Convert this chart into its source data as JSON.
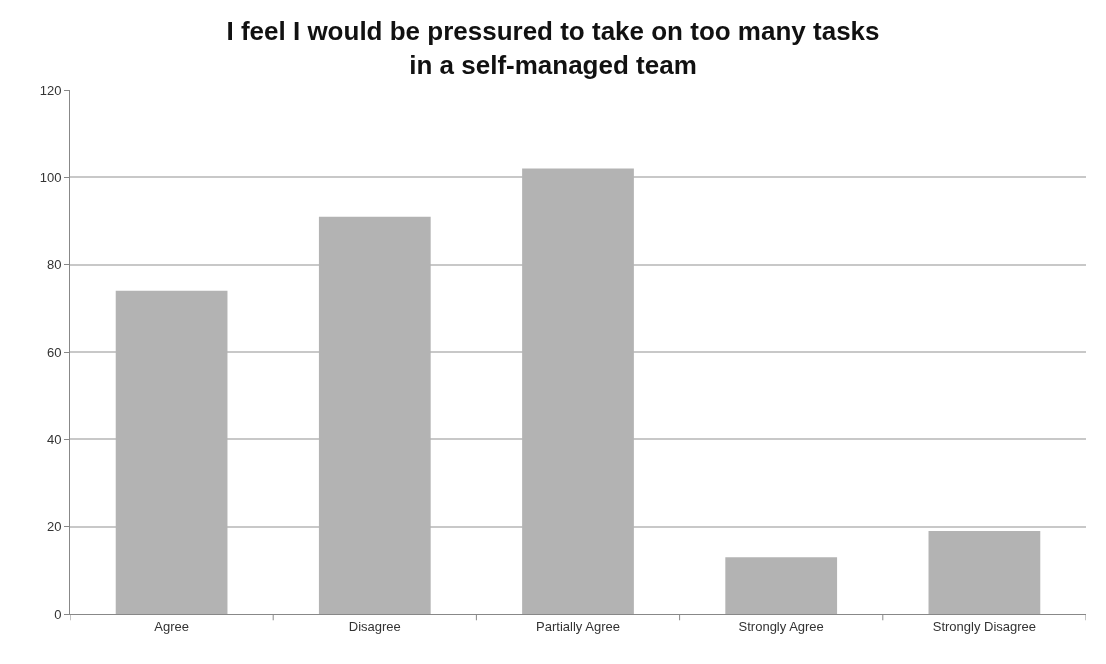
{
  "chart_data": {
    "type": "bar",
    "title": "I feel I would be pressured to take on too many tasks\nin a self-managed team",
    "categories": [
      "Agree",
      "Disagree",
      "Partially Agree",
      "Strongly Agree",
      "Strongly Disagree"
    ],
    "values": [
      74,
      91,
      102,
      13,
      19
    ],
    "color": "#b3b3b3",
    "ylim": [
      0,
      120
    ],
    "yticks": [
      0,
      20,
      40,
      60,
      80,
      100,
      120
    ],
    "grid": "y"
  }
}
